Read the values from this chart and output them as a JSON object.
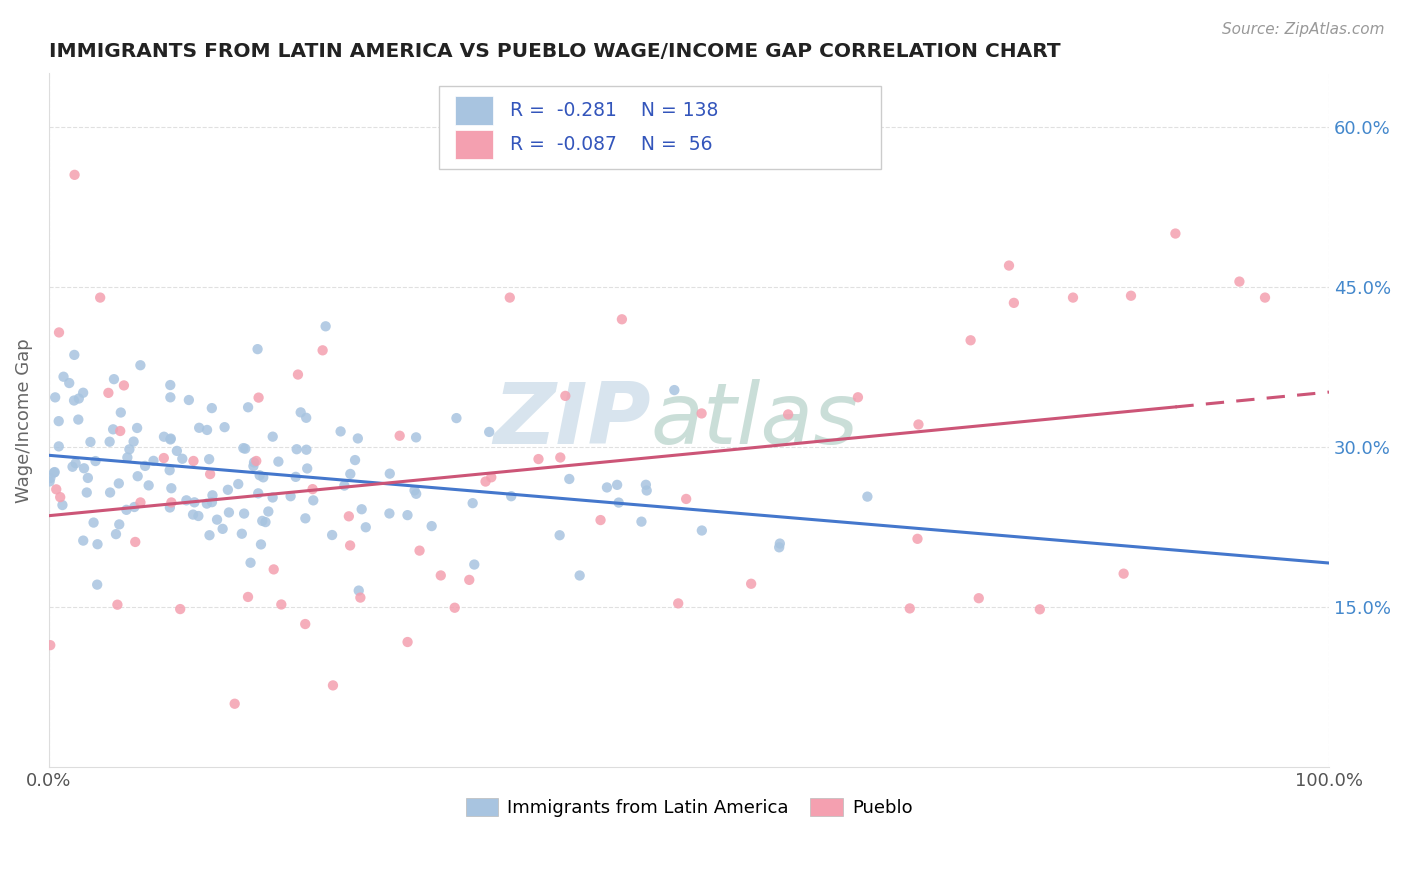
{
  "title": "IMMIGRANTS FROM LATIN AMERICA VS PUEBLO WAGE/INCOME GAP CORRELATION CHART",
  "source": "Source: ZipAtlas.com",
  "ylabel": "Wage/Income Gap",
  "watermark_zip": "ZIP",
  "watermark_atlas": "atlas",
  "xmin": 0.0,
  "xmax": 1.0,
  "ymin": 0.0,
  "ymax": 0.65,
  "yticks": [
    0.15,
    0.3,
    0.45,
    0.6
  ],
  "ytick_labels": [
    "15.0%",
    "30.0%",
    "45.0%",
    "60.0%"
  ],
  "xticks": [
    0.0,
    1.0
  ],
  "xtick_labels": [
    "0.0%",
    "100.0%"
  ],
  "legend1_label": "Immigrants from Latin America",
  "legend2_label": "Pueblo",
  "r1": -0.281,
  "n1": 138,
  "r2": -0.087,
  "n2": 56,
  "blue_color": "#a8c4e0",
  "pink_color": "#f4a0b0",
  "title_color": "#222222",
  "axis_label_color": "#666666",
  "tick_color": "#555555",
  "grid_color": "#dddddd",
  "legend_text_color": "#3355bb",
  "blue_line_color": "#4477cc",
  "pink_line_color": "#cc5577",
  "background_color": "#ffffff",
  "watermark_color": "#c8d8e8"
}
